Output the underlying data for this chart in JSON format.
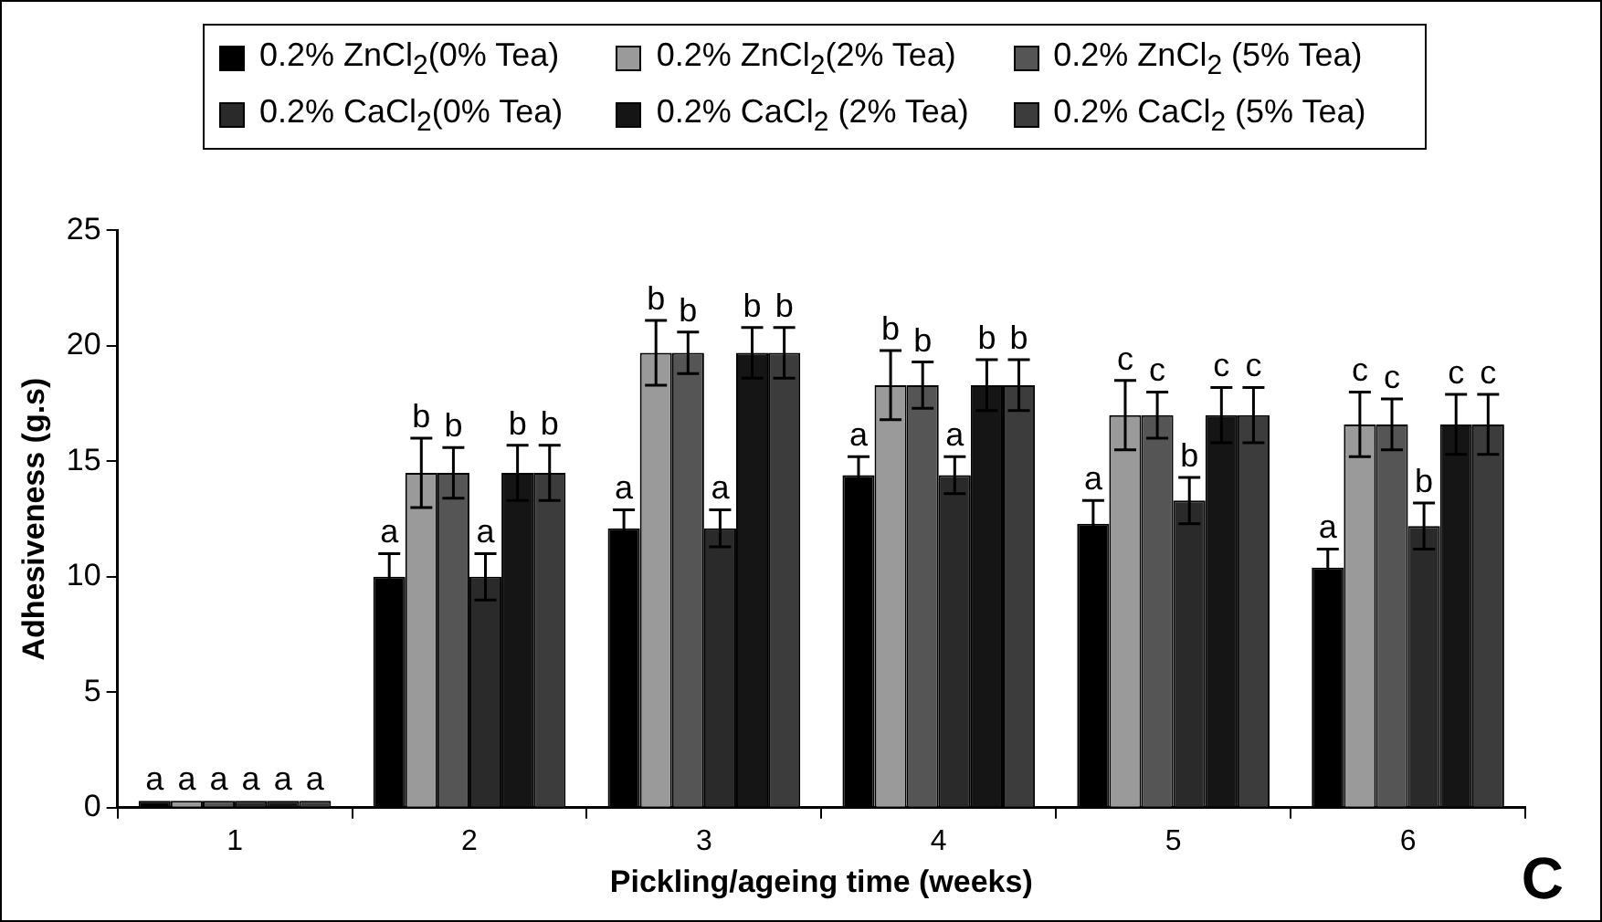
{
  "chart_data": {
    "type": "bar",
    "xlabel": "Pickling/ageing time (weeks)",
    "ylabel": "Adhesiveness (g.s)",
    "categories": [
      "1",
      "2",
      "3",
      "4",
      "5",
      "6"
    ],
    "ylim": [
      0,
      25
    ],
    "yticks": [
      0,
      5,
      10,
      15,
      20,
      25
    ],
    "grid": false,
    "legend": "top",
    "series": [
      {
        "name": "0.2% ZnCl$_{2}$(0% Tea)",
        "color": "#000000",
        "values": [
          0.3,
          10.0,
          12.1,
          14.4,
          12.3,
          10.4
        ],
        "errors": [
          null,
          1.0,
          0.8,
          0.8,
          1.0,
          0.8
        ]
      },
      {
        "name": "0.2% ZnCl$_{2}$(2% Tea)",
        "color": "#9a9a9a",
        "values": [
          0.3,
          14.5,
          19.7,
          18.3,
          17.0,
          16.6
        ],
        "errors": [
          null,
          1.5,
          1.4,
          1.5,
          1.5,
          1.4
        ]
      },
      {
        "name": "0.2% ZnCl$_{2}$ (5% Tea)",
        "color": "#555555",
        "values": [
          0.3,
          14.5,
          19.7,
          18.3,
          17.0,
          16.6
        ],
        "errors": [
          null,
          1.1,
          0.9,
          1.0,
          1.0,
          1.1
        ]
      },
      {
        "name": "0.2% CaCl$_{2}$(0% Tea)",
        "color": "#2a2a2a",
        "values": [
          0.3,
          10.0,
          12.1,
          14.4,
          13.3,
          12.2
        ],
        "errors": [
          null,
          1.0,
          0.8,
          0.8,
          1.0,
          1.0
        ]
      },
      {
        "name": "0.2% CaCl$_{2}$ (2% Tea)",
        "color": "#151515",
        "values": [
          0.3,
          14.5,
          19.7,
          18.3,
          17.0,
          16.6
        ],
        "errors": [
          null,
          1.2,
          1.1,
          1.1,
          1.2,
          1.3
        ]
      },
      {
        "name": "0.2% CaCl$_{2}$ (5% Tea)",
        "color": "#3c3c3c",
        "values": [
          0.3,
          14.5,
          19.7,
          18.3,
          17.0,
          16.6
        ],
        "errors": [
          null,
          1.2,
          1.1,
          1.1,
          1.2,
          1.3
        ]
      }
    ],
    "annotations": [
      {
        "text": "a",
        "x": "1",
        "y": 0.3
      },
      {
        "text": "a",
        "x": "1",
        "y": 0.3
      },
      {
        "text": "a",
        "x": "1",
        "y": 0.3
      },
      {
        "text": "a",
        "x": "1",
        "y": 0.3
      },
      {
        "text": "a",
        "x": "1",
        "y": 0.3
      },
      {
        "text": "a",
        "x": "1",
        "y": 0.3
      },
      {
        "text": "a",
        "x": "2",
        "y": 10.0
      },
      {
        "text": "b",
        "x": "2",
        "y": 14.5
      },
      {
        "text": "b",
        "x": "2",
        "y": 14.5
      },
      {
        "text": "a",
        "x": "2",
        "y": 10.0
      },
      {
        "text": "b",
        "x": "2",
        "y": 14.5
      },
      {
        "text": "b",
        "x": "2",
        "y": 14.5
      },
      {
        "text": "a",
        "x": "3",
        "y": 12.1
      },
      {
        "text": "b",
        "x": "3",
        "y": 19.7
      },
      {
        "text": "b",
        "x": "3",
        "y": 19.7
      },
      {
        "text": "a",
        "x": "3",
        "y": 12.1
      },
      {
        "text": "b",
        "x": "3",
        "y": 19.7
      },
      {
        "text": "b",
        "x": "3",
        "y": 19.7
      },
      {
        "text": "a",
        "x": "4",
        "y": 14.4
      },
      {
        "text": "b",
        "x": "4",
        "y": 18.3
      },
      {
        "text": "b",
        "x": "4",
        "y": 18.3
      },
      {
        "text": "a",
        "x": "4",
        "y": 14.4
      },
      {
        "text": "b",
        "x": "4",
        "y": 18.3
      },
      {
        "text": "b",
        "x": "4",
        "y": 18.3
      },
      {
        "text": "a",
        "x": "5",
        "y": 12.3
      },
      {
        "text": "c",
        "x": "5",
        "y": 17.0
      },
      {
        "text": "c",
        "x": "5",
        "y": 17.0
      },
      {
        "text": "b",
        "x": "5",
        "y": 13.3
      },
      {
        "text": "c",
        "x": "5",
        "y": 17.0
      },
      {
        "text": "c",
        "x": "5",
        "y": 17.0
      },
      {
        "text": "a",
        "x": "6",
        "y": 10.4
      },
      {
        "text": "c",
        "x": "6",
        "y": 16.6
      },
      {
        "text": "c",
        "x": "6",
        "y": 16.6
      },
      {
        "text": "b",
        "x": "6",
        "y": 12.2
      },
      {
        "text": "c",
        "x": "6",
        "y": 16.6
      },
      {
        "text": "c",
        "x": "6",
        "y": 16.6
      },
      "C"
    ]
  }
}
